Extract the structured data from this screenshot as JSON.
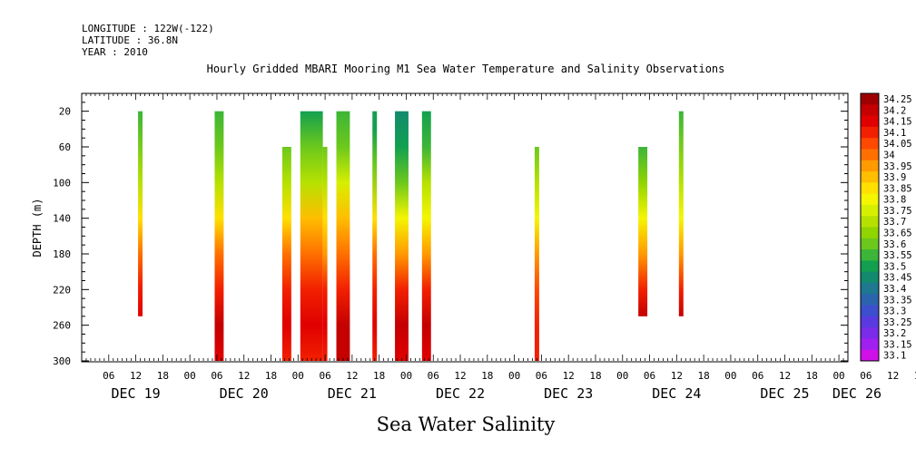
{
  "header": {
    "longitude": "LONGITUDE : 122W(-122)",
    "latitude": "LATITUDE : 36.8N",
    "year": "YEAR : 2010"
  },
  "chart_data": {
    "type": "heatmap",
    "title": "Hourly Gridded MBARI Mooring M1 Sea Water Temperature and Salinity Observations",
    "xlabel": "",
    "ylabel": "DEPTH (m)",
    "variable_label": "Sea Water Salinity",
    "y_ticks": [
      20,
      60,
      100,
      140,
      180,
      220,
      260,
      300
    ],
    "y_range": [
      0,
      300
    ],
    "x_hour_ticks": [
      "06",
      "12",
      "18",
      "00",
      "06",
      "12",
      "18",
      "00",
      "06",
      "12",
      "18",
      "00",
      "06",
      "12",
      "18",
      "00",
      "06",
      "12",
      "18",
      "00",
      "06",
      "12",
      "18",
      "00",
      "06",
      "12",
      "18",
      "00",
      "06",
      "12",
      "18",
      "00",
      "06"
    ],
    "x_day_labels": [
      {
        "label": "DEC 19",
        "hour": 12
      },
      {
        "label": "DEC 20",
        "hour": 36
      },
      {
        "label": "DEC 21",
        "hour": 60
      },
      {
        "label": "DEC 22",
        "hour": 84
      },
      {
        "label": "DEC 23",
        "hour": 108
      },
      {
        "label": "DEC 24",
        "hour": 132
      },
      {
        "label": "DEC 25",
        "hour": 156
      },
      {
        "label": "DEC 26",
        "hour": 172
      }
    ],
    "x_range_hours": [
      0,
      170
    ],
    "colorbar": {
      "levels": [
        "34.25",
        "34.2",
        "34.15",
        "34.1",
        "34.05",
        "34",
        "33.95",
        "33.9",
        "33.85",
        "33.8",
        "33.75",
        "33.7",
        "33.65",
        "33.6",
        "33.55",
        "33.5",
        "33.45",
        "33.4",
        "33.35",
        "33.3",
        "33.25",
        "33.2",
        "33.15",
        "33.1"
      ],
      "colors": [
        "#9e0000",
        "#c40000",
        "#e00000",
        "#f22000",
        "#ff4800",
        "#ff7000",
        "#ff9a00",
        "#ffbe00",
        "#ffe000",
        "#f5f500",
        "#d6ef00",
        "#b6e100",
        "#90d400",
        "#6cc81c",
        "#3cb538",
        "#12a050",
        "#128a6e",
        "#1d7890",
        "#2c63ad",
        "#3c4fcc",
        "#5a3ae0",
        "#7a2ce8",
        "#a020f0",
        "#d010e8"
      ]
    },
    "profiles": [
      {
        "hour_start": 12.5,
        "hour_end": 13.5,
        "top": 20,
        "bottom": 250,
        "values": [
          [
            20,
            33.55
          ],
          [
            100,
            33.7
          ],
          [
            140,
            33.85
          ],
          [
            180,
            33.98
          ],
          [
            215,
            34.08
          ],
          [
            250,
            34.17
          ]
        ]
      },
      {
        "hour_start": 29.5,
        "hour_end": 31.5,
        "top": 20,
        "bottom": 300,
        "values": [
          [
            20,
            33.53
          ],
          [
            60,
            33.58
          ],
          [
            100,
            33.7
          ],
          [
            140,
            33.85
          ],
          [
            180,
            33.98
          ],
          [
            220,
            34.1
          ],
          [
            260,
            34.2
          ],
          [
            300,
            34.15
          ]
        ]
      },
      {
        "hour_start": 44.5,
        "hour_end": 46.5,
        "top": 60,
        "bottom": 300,
        "values": [
          [
            60,
            33.58
          ],
          [
            100,
            33.7
          ],
          [
            140,
            33.85
          ],
          [
            180,
            33.98
          ],
          [
            220,
            34.1
          ],
          [
            260,
            34.15
          ],
          [
            300,
            34.12
          ]
        ]
      },
      {
        "hour_start": 48.5,
        "hour_end": 53.5,
        "top": 20,
        "bottom": 300,
        "values": [
          [
            20,
            33.52
          ],
          [
            60,
            33.58
          ],
          [
            100,
            33.72
          ],
          [
            140,
            33.88
          ],
          [
            180,
            33.98
          ],
          [
            220,
            34.08
          ],
          [
            260,
            34.15
          ],
          [
            300,
            34.12
          ]
        ]
      },
      {
        "hour_start": 53.5,
        "hour_end": 54.5,
        "top": 60,
        "bottom": 300,
        "values": [
          [
            60,
            33.58
          ],
          [
            100,
            33.7
          ],
          [
            140,
            33.85
          ],
          [
            180,
            33.96
          ],
          [
            220,
            34.08
          ],
          [
            260,
            34.15
          ],
          [
            300,
            34.12
          ]
        ]
      },
      {
        "hour_start": 56.5,
        "hour_end": 59.5,
        "top": 20,
        "bottom": 300,
        "values": [
          [
            20,
            33.55
          ],
          [
            60,
            33.62
          ],
          [
            100,
            33.75
          ],
          [
            140,
            33.88
          ],
          [
            180,
            33.98
          ],
          [
            220,
            34.1
          ],
          [
            260,
            34.22
          ],
          [
            300,
            34.2
          ]
        ]
      },
      {
        "hour_start": 64.5,
        "hour_end": 65.5,
        "top": 20,
        "bottom": 300,
        "values": [
          [
            20,
            33.48
          ],
          [
            40,
            33.48
          ],
          [
            80,
            33.6
          ],
          [
            140,
            33.85
          ],
          [
            180,
            33.98
          ],
          [
            220,
            34.1
          ],
          [
            260,
            34.15
          ],
          [
            300,
            34.12
          ]
        ]
      },
      {
        "hour_start": 69.5,
        "hour_end": 72.5,
        "top": 20,
        "bottom": 300,
        "values": [
          [
            20,
            33.46
          ],
          [
            60,
            33.5
          ],
          [
            100,
            33.62
          ],
          [
            140,
            33.8
          ],
          [
            180,
            33.95
          ],
          [
            220,
            34.08
          ],
          [
            260,
            34.2
          ],
          [
            300,
            34.15
          ]
        ]
      },
      {
        "hour_start": 75.5,
        "hour_end": 77.5,
        "top": 20,
        "bottom": 300,
        "values": [
          [
            20,
            33.48
          ],
          [
            60,
            33.55
          ],
          [
            100,
            33.68
          ],
          [
            140,
            33.82
          ],
          [
            180,
            33.95
          ],
          [
            220,
            34.08
          ],
          [
            260,
            34.2
          ],
          [
            300,
            34.15
          ]
        ]
      },
      {
        "hour_start": 100.5,
        "hour_end": 101.5,
        "top": 60,
        "bottom": 300,
        "values": [
          [
            60,
            33.58
          ],
          [
            100,
            33.7
          ],
          [
            140,
            33.82
          ],
          [
            180,
            33.95
          ],
          [
            220,
            34.05
          ],
          [
            260,
            34.12
          ],
          [
            300,
            34.12
          ]
        ]
      },
      {
        "hour_start": 123.5,
        "hour_end": 125.5,
        "top": 60,
        "bottom": 250,
        "values": [
          [
            60,
            33.55
          ],
          [
            100,
            33.65
          ],
          [
            140,
            33.8
          ],
          [
            180,
            33.93
          ],
          [
            220,
            34.08
          ],
          [
            250,
            34.2
          ]
        ]
      },
      {
        "hour_start": 132.5,
        "hour_end": 133.5,
        "top": 20,
        "bottom": 250,
        "values": [
          [
            20,
            33.55
          ],
          [
            100,
            33.68
          ],
          [
            140,
            33.82
          ],
          [
            180,
            33.95
          ],
          [
            220,
            34.08
          ],
          [
            250,
            34.2
          ]
        ]
      }
    ],
    "grid": false
  }
}
